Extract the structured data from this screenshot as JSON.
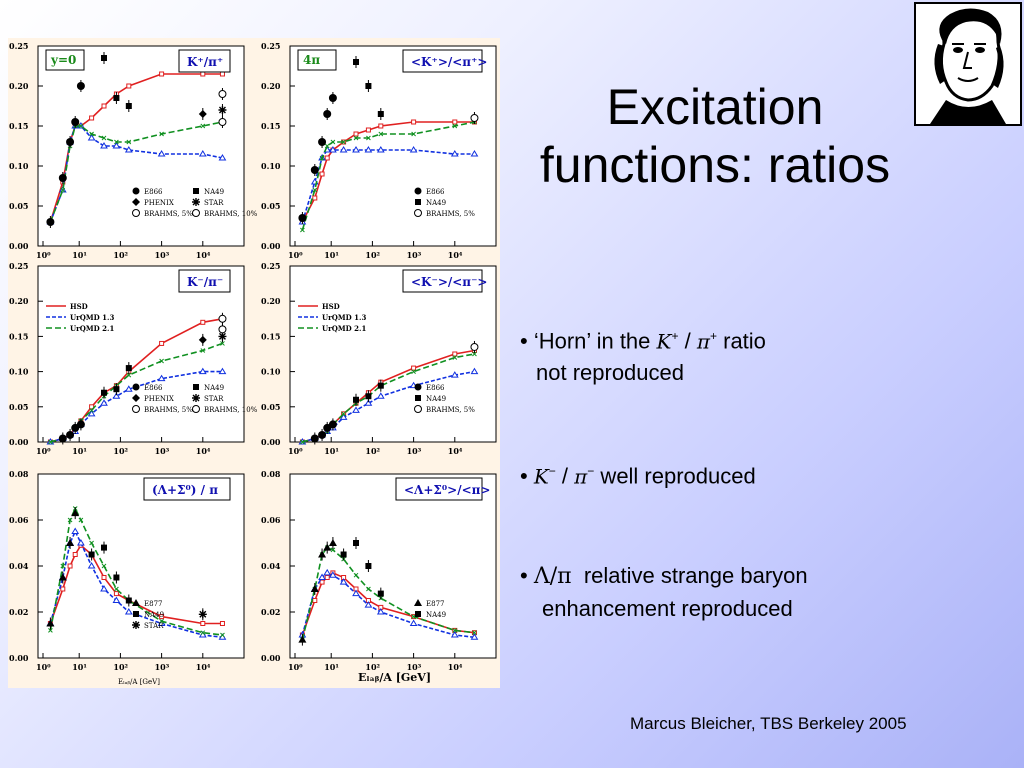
{
  "slide": {
    "title_line1": "Excitation",
    "title_line2": "functions: ratios",
    "footer": "Marcus Bleicher, TBS Berkeley 2005"
  },
  "portrait": {
    "icon": "goethe-portrait-sketch"
  },
  "bullets": [
    {
      "pre": "‘Horn’ in the ",
      "math_a": "K",
      "sup_a": "+",
      "slash": " / ",
      "math_b": "π",
      "sup_b": "+",
      "post": " ratio",
      "line2": "not reproduced"
    },
    {
      "math_a": "K",
      "sup_a": "−",
      "slash": " / ",
      "math_b": "π",
      "sup_b": "−",
      "post": " well reproduced"
    },
    {
      "math": "Λ/π",
      "post": "  relative strange baryon",
      "line2": "enhancement reproduced"
    }
  ],
  "bullet_char": "•",
  "chart_data": [
    {
      "panel": "K+/pi+ y=0",
      "type": "line",
      "title": "K⁺/π⁺",
      "tag": "y=0",
      "ylim": [
        0,
        0.25
      ],
      "yticks": [
        "0.25",
        "0.20",
        "0.15",
        "0.10",
        "0.05",
        "0.00"
      ],
      "xscale": "log",
      "xlim": [
        1,
        100000
      ],
      "series": [
        {
          "name": "HSD",
          "x": [
            2,
            4,
            6,
            8,
            11,
            20,
            40,
            80,
            160,
            1000,
            10000,
            30000
          ],
          "values": [
            0.03,
            0.08,
            0.13,
            0.15,
            0.15,
            0.16,
            0.175,
            0.19,
            0.2,
            0.215,
            0.215,
            0.215
          ]
        },
        {
          "name": "UrQMD 1.3",
          "x": [
            2,
            4,
            6,
            8,
            11,
            20,
            40,
            80,
            160,
            1000,
            10000,
            30000
          ],
          "values": [
            0.03,
            0.07,
            0.13,
            0.15,
            0.15,
            0.135,
            0.125,
            0.125,
            0.12,
            0.115,
            0.115,
            0.11
          ]
        },
        {
          "name": "UrQMD 2.1",
          "x": [
            2,
            4,
            6,
            8,
            11,
            20,
            40,
            80,
            160,
            1000,
            10000,
            30000
          ],
          "values": [
            0.03,
            0.07,
            0.125,
            0.15,
            0.15,
            0.14,
            0.135,
            0.13,
            0.13,
            0.14,
            0.15,
            0.155
          ]
        },
        {
          "name": "E866",
          "x": [
            2,
            4,
            6,
            8,
            11
          ],
          "values": [
            0.03,
            0.085,
            0.13,
            0.155,
            0.2
          ]
        },
        {
          "name": "NA49",
          "x": [
            40,
            80,
            160
          ],
          "values": [
            0.235,
            0.185,
            0.175
          ]
        },
        {
          "name": "STAR",
          "x": [
            30000
          ],
          "values": [
            0.17
          ]
        },
        {
          "name": "PHENIX",
          "x": [
            10000
          ],
          "values": [
            0.165
          ]
        },
        {
          "name": "BRAHMS, 5%",
          "x": [
            30000
          ],
          "values": [
            0.19
          ]
        },
        {
          "name": "BRAHMS, 10%",
          "x": [
            30000
          ],
          "values": [
            0.155
          ]
        }
      ],
      "legend": [
        "E866",
        "NA49",
        "PHENIX",
        "STAR",
        "BRAHMS, 5%",
        "BRAHMS, 10%"
      ]
    },
    {
      "panel": "<K+>/<pi+> 4pi",
      "type": "line",
      "title": "<K⁺>/<π⁺>",
      "tag": "4π",
      "ylim": [
        0,
        0.25
      ],
      "yticks": [
        "0.25",
        "0.20",
        "0.15",
        "0.10",
        "0.05",
        "0.00"
      ],
      "xscale": "log",
      "xlim": [
        1,
        100000
      ],
      "series": [
        {
          "name": "HSD",
          "x": [
            2,
            4,
            6,
            8,
            11,
            20,
            40,
            80,
            160,
            1000,
            10000,
            30000
          ],
          "values": [
            0.03,
            0.06,
            0.09,
            0.11,
            0.12,
            0.13,
            0.14,
            0.145,
            0.15,
            0.155,
            0.155,
            0.155
          ]
        },
        {
          "name": "UrQMD 1.3",
          "x": [
            2,
            4,
            6,
            8,
            11,
            20,
            40,
            80,
            160,
            1000,
            10000,
            30000
          ],
          "values": [
            0.03,
            0.08,
            0.11,
            0.12,
            0.12,
            0.12,
            0.12,
            0.12,
            0.12,
            0.12,
            0.115,
            0.115
          ]
        },
        {
          "name": "UrQMD 2.1",
          "x": [
            2,
            4,
            6,
            8,
            11,
            20,
            40,
            80,
            160,
            1000,
            10000,
            30000
          ],
          "values": [
            0.02,
            0.07,
            0.11,
            0.125,
            0.13,
            0.13,
            0.135,
            0.135,
            0.14,
            0.14,
            0.15,
            0.155
          ]
        },
        {
          "name": "E866",
          "x": [
            2,
            4,
            6,
            8,
            11
          ],
          "values": [
            0.035,
            0.095,
            0.13,
            0.165,
            0.185
          ]
        },
        {
          "name": "NA49",
          "x": [
            40,
            80,
            160
          ],
          "values": [
            0.23,
            0.2,
            0.165
          ]
        },
        {
          "name": "BRAHMS, 5%",
          "x": [
            30000
          ],
          "values": [
            0.16
          ]
        }
      ],
      "legend": [
        "E866",
        "NA49",
        "BRAHMS, 5%"
      ]
    },
    {
      "panel": "K-/pi- y=0",
      "type": "line",
      "title": "K⁻/π⁻",
      "ylim": [
        0,
        0.25
      ],
      "yticks": [
        "0.25",
        "0.20",
        "0.15",
        "0.10",
        "0.05",
        "0.00"
      ],
      "xscale": "log",
      "xlim": [
        1,
        100000
      ],
      "series": [
        {
          "name": "HSD",
          "x": [
            2,
            4,
            6,
            8,
            11,
            20,
            40,
            80,
            160,
            1000,
            10000,
            30000
          ],
          "values": [
            0,
            0.005,
            0.01,
            0.02,
            0.03,
            0.05,
            0.07,
            0.08,
            0.1,
            0.14,
            0.17,
            0.175
          ]
        },
        {
          "name": "UrQMD 1.3",
          "x": [
            2,
            4,
            6,
            8,
            11,
            20,
            40,
            80,
            160,
            1000,
            10000,
            30000
          ],
          "values": [
            0,
            0.005,
            0.01,
            0.015,
            0.025,
            0.04,
            0.055,
            0.065,
            0.075,
            0.09,
            0.1,
            0.1
          ]
        },
        {
          "name": "UrQMD 2.1",
          "x": [
            2,
            4,
            6,
            8,
            11,
            20,
            40,
            80,
            160,
            1000,
            10000,
            30000
          ],
          "values": [
            0,
            0.005,
            0.01,
            0.02,
            0.03,
            0.045,
            0.065,
            0.08,
            0.095,
            0.115,
            0.13,
            0.14
          ]
        },
        {
          "name": "E866",
          "x": [
            4,
            6,
            8,
            11
          ],
          "values": [
            0.005,
            0.01,
            0.02,
            0.025
          ]
        },
        {
          "name": "NA49",
          "x": [
            40,
            80,
            160
          ],
          "values": [
            0.07,
            0.075,
            0.105
          ]
        },
        {
          "name": "STAR",
          "x": [
            30000
          ],
          "values": [
            0.15
          ]
        },
        {
          "name": "PHENIX",
          "x": [
            10000
          ],
          "values": [
            0.145
          ]
        },
        {
          "name": "BRAHMS, 5%",
          "x": [
            30000
          ],
          "values": [
            0.175
          ]
        },
        {
          "name": "BRAHMS, 10%",
          "x": [
            30000
          ],
          "values": [
            0.16
          ]
        }
      ],
      "legend": [
        "HSD",
        "UrQMD 1.3",
        "UrQMD 2.1",
        "E866",
        "NA49",
        "PHENIX",
        "STAR",
        "BRAHMS, 5%",
        "BRAHMS, 10%"
      ]
    },
    {
      "panel": "<K->/<pi->",
      "type": "line",
      "title": "<K⁻>/<π⁻>",
      "ylim": [
        0,
        0.25
      ],
      "yticks": [
        "0.25",
        "0.20",
        "0.15",
        "0.10",
        "0.05",
        "0.00"
      ],
      "xscale": "log",
      "xlim": [
        1,
        100000
      ],
      "series": [
        {
          "name": "HSD",
          "x": [
            2,
            4,
            6,
            8,
            11,
            20,
            40,
            80,
            160,
            1000,
            10000,
            30000
          ],
          "values": [
            0,
            0.005,
            0.01,
            0.015,
            0.025,
            0.04,
            0.055,
            0.07,
            0.085,
            0.105,
            0.125,
            0.13
          ]
        },
        {
          "name": "UrQMD 1.3",
          "x": [
            2,
            4,
            6,
            8,
            11,
            20,
            40,
            80,
            160,
            1000,
            10000,
            30000
          ],
          "values": [
            0,
            0.005,
            0.01,
            0.015,
            0.02,
            0.035,
            0.045,
            0.055,
            0.065,
            0.08,
            0.095,
            0.1
          ]
        },
        {
          "name": "UrQMD 2.1",
          "x": [
            2,
            4,
            6,
            8,
            11,
            20,
            40,
            80,
            160,
            1000,
            10000,
            30000
          ],
          "values": [
            0,
            0.005,
            0.01,
            0.015,
            0.025,
            0.04,
            0.055,
            0.065,
            0.08,
            0.1,
            0.12,
            0.125
          ]
        },
        {
          "name": "E866",
          "x": [
            4,
            6,
            8,
            11
          ],
          "values": [
            0.005,
            0.01,
            0.02,
            0.025
          ]
        },
        {
          "name": "NA49",
          "x": [
            40,
            80,
            160
          ],
          "values": [
            0.06,
            0.065,
            0.08
          ]
        },
        {
          "name": "BRAHMS, 5%",
          "x": [
            30000
          ],
          "values": [
            0.135
          ]
        }
      ],
      "legend": [
        "HSD",
        "UrQMD 1.3",
        "UrQMD 2.1",
        "E866",
        "NA49",
        "BRAHMS, 5%"
      ]
    },
    {
      "panel": "(Lambda+Sigma0)/pi",
      "type": "line",
      "title": "(Λ+Σ⁰) / π",
      "ylim": [
        0,
        0.08
      ],
      "yticks": [
        "0.08",
        "0.06",
        "0.04",
        "0.02",
        "0.00"
      ],
      "xscale": "log",
      "xlim": [
        1,
        100000
      ],
      "xlabel": "E_lab/A [GeV]",
      "series": [
        {
          "name": "HSD",
          "x": [
            2,
            4,
            6,
            8,
            11,
            20,
            40,
            80,
            160,
            1000,
            10000,
            30000
          ],
          "values": [
            0.015,
            0.03,
            0.04,
            0.045,
            0.049,
            0.045,
            0.035,
            0.028,
            0.025,
            0.018,
            0.015,
            0.015
          ]
        },
        {
          "name": "UrQMD 1.3",
          "x": [
            2,
            4,
            6,
            8,
            11,
            20,
            40,
            80,
            160,
            1000,
            10000,
            30000
          ],
          "values": [
            0.015,
            0.035,
            0.05,
            0.055,
            0.05,
            0.04,
            0.03,
            0.025,
            0.02,
            0.015,
            0.01,
            0.009
          ]
        },
        {
          "name": "UrQMD 2.1",
          "x": [
            2,
            4,
            6,
            8,
            11,
            20,
            40,
            80,
            160,
            1000,
            10000,
            30000
          ],
          "values": [
            0.012,
            0.04,
            0.06,
            0.065,
            0.06,
            0.05,
            0.04,
            0.03,
            0.025,
            0.016,
            0.011,
            0.01
          ]
        },
        {
          "name": "E877",
          "x": [
            2,
            4,
            6,
            8
          ],
          "values": [
            0.015,
            0.035,
            0.05,
            0.063
          ]
        },
        {
          "name": "NA49",
          "x": [
            20,
            40,
            80,
            160
          ],
          "values": [
            0.045,
            0.048,
            0.035,
            0.025
          ]
        },
        {
          "name": "STAR",
          "x": [
            10000
          ],
          "values": [
            0.019
          ]
        }
      ],
      "legend": [
        "E877",
        "NA49",
        "STAR"
      ]
    },
    {
      "panel": "<Lambda+Sigma0>/<pi>",
      "type": "line",
      "title": "<Λ+Σ⁰>/<π>",
      "ylim": [
        0,
        0.08
      ],
      "yticks": [
        "0.08",
        "0.06",
        "0.04",
        "0.02",
        "0.00"
      ],
      "xscale": "log",
      "xlim": [
        1,
        100000
      ],
      "xlabel": "E_lab/A [GeV]",
      "series": [
        {
          "name": "HSD",
          "x": [
            2,
            4,
            6,
            8,
            11,
            20,
            40,
            80,
            160,
            1000,
            10000,
            30000
          ],
          "values": [
            0.01,
            0.025,
            0.033,
            0.035,
            0.037,
            0.035,
            0.03,
            0.025,
            0.022,
            0.018,
            0.012,
            0.011
          ]
        },
        {
          "name": "UrQMD 1.3",
          "x": [
            2,
            4,
            6,
            8,
            11,
            20,
            40,
            80,
            160,
            1000,
            10000,
            30000
          ],
          "values": [
            0.01,
            0.03,
            0.035,
            0.037,
            0.036,
            0.033,
            0.028,
            0.023,
            0.02,
            0.015,
            0.01,
            0.009
          ]
        },
        {
          "name": "UrQMD 2.1",
          "x": [
            2,
            4,
            6,
            8,
            11,
            20,
            40,
            80,
            160,
            1000,
            10000,
            30000
          ],
          "values": [
            0.008,
            0.03,
            0.045,
            0.048,
            0.047,
            0.043,
            0.036,
            0.03,
            0.026,
            0.018,
            0.012,
            0.011
          ]
        },
        {
          "name": "E877",
          "x": [
            2,
            4,
            6,
            8,
            11
          ],
          "values": [
            0.008,
            0.03,
            0.045,
            0.048,
            0.05
          ]
        },
        {
          "name": "NA49",
          "x": [
            20,
            40,
            80,
            160
          ],
          "values": [
            0.045,
            0.05,
            0.04,
            0.028
          ]
        }
      ],
      "legend": [
        "E877",
        "NA49"
      ]
    }
  ],
  "axes": {
    "xticks": [
      "10⁰",
      "10¹",
      "10²",
      "10³",
      "10⁴"
    ],
    "xlabel_left": "Eₗₐᵦ/A [GeV]",
    "xlabel_right": "Eₗₐᵦ/A [GeV]"
  },
  "colors": {
    "hsd": "#e02020",
    "urqmd13": "#1030e0",
    "urqmd21": "#109020",
    "data": "#000000"
  }
}
